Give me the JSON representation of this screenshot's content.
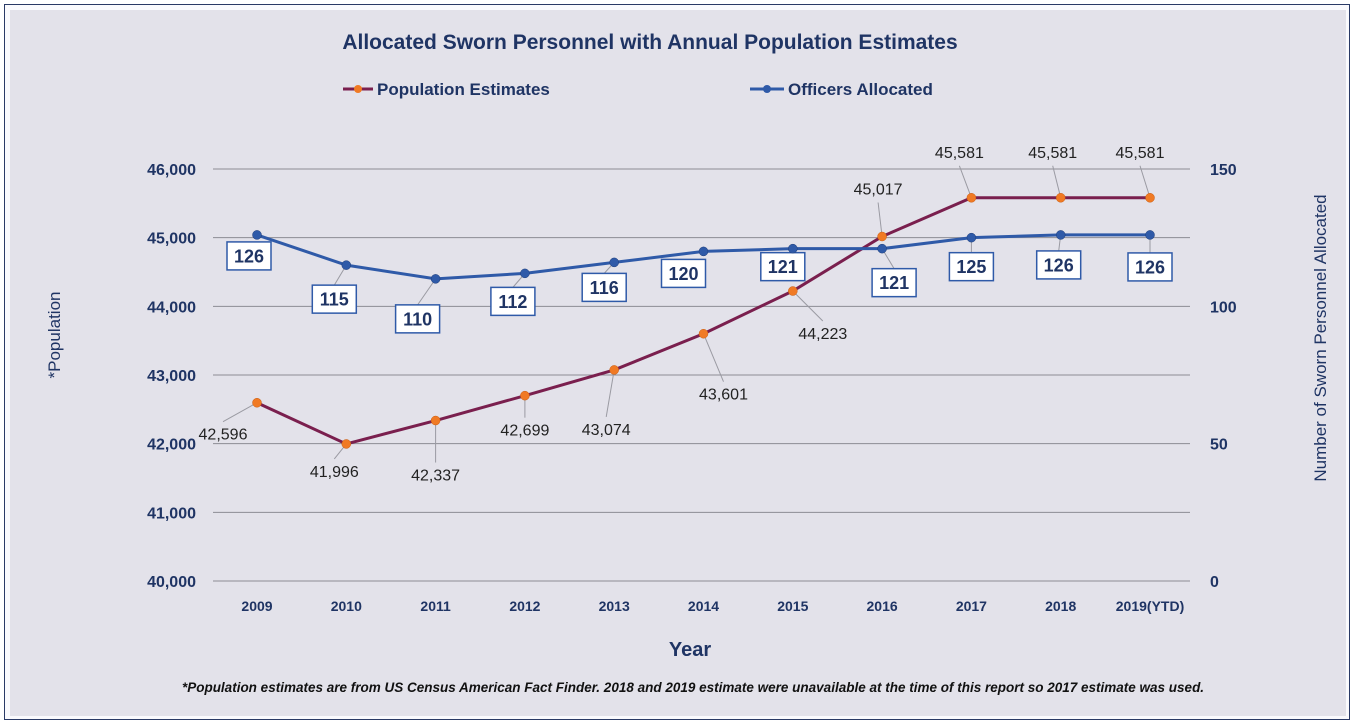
{
  "chart_data": {
    "type": "line",
    "title": "Allocated Sworn Personnel with Annual Population Estimates",
    "xlabel": "Year",
    "ylabel_left": "*Population",
    "ylabel_right": "Number of Sworn Personnel Allocated",
    "categories": [
      "2009",
      "2010",
      "2011",
      "2012",
      "2013",
      "2014",
      "2015",
      "2016",
      "2017",
      "2018",
      "2019(YTD)"
    ],
    "y_left": {
      "min": 40000,
      "max": 46000,
      "ticks": [
        "40,000",
        "41,000",
        "42,000",
        "43,000",
        "44,000",
        "45,000",
        "46,000"
      ],
      "tick_values": [
        40000,
        41000,
        42000,
        43000,
        44000,
        45000,
        46000
      ]
    },
    "y_right": {
      "min": 0,
      "max": 150,
      "ticks": [
        "0",
        "50",
        "100",
        "150"
      ],
      "tick_values": [
        0,
        50,
        100,
        150
      ]
    },
    "grid": true,
    "legend_position": "top-center",
    "series": [
      {
        "name": "Population Estimates",
        "axis": "left",
        "line_color": "#7a1f4e",
        "marker_color": "#f07a24",
        "values": [
          42596,
          41996,
          42337,
          42699,
          43074,
          43601,
          44223,
          45017,
          45581,
          45581,
          45581
        ],
        "labels": [
          "42,596",
          "41,996",
          "42,337",
          "42,699",
          "43,074",
          "43,601",
          "44,223",
          "45,017",
          "45,581",
          "45,581",
          "45,581"
        ]
      },
      {
        "name": "Officers Allocated",
        "axis": "right",
        "line_color": "#2f5aa8",
        "marker_color": "#2f5aa8",
        "values": [
          126,
          115,
          110,
          112,
          116,
          120,
          121,
          121,
          125,
          126,
          126
        ],
        "labels": [
          "126",
          "115",
          "110",
          "112",
          "116",
          "120",
          "121",
          "121",
          "125",
          "126",
          "126"
        ]
      }
    ],
    "footnote": "*Population estimates are from US Census American Fact Finder. 2018 and 2019 estimate were unavailable at the time of this report so 2017 estimate was used."
  }
}
